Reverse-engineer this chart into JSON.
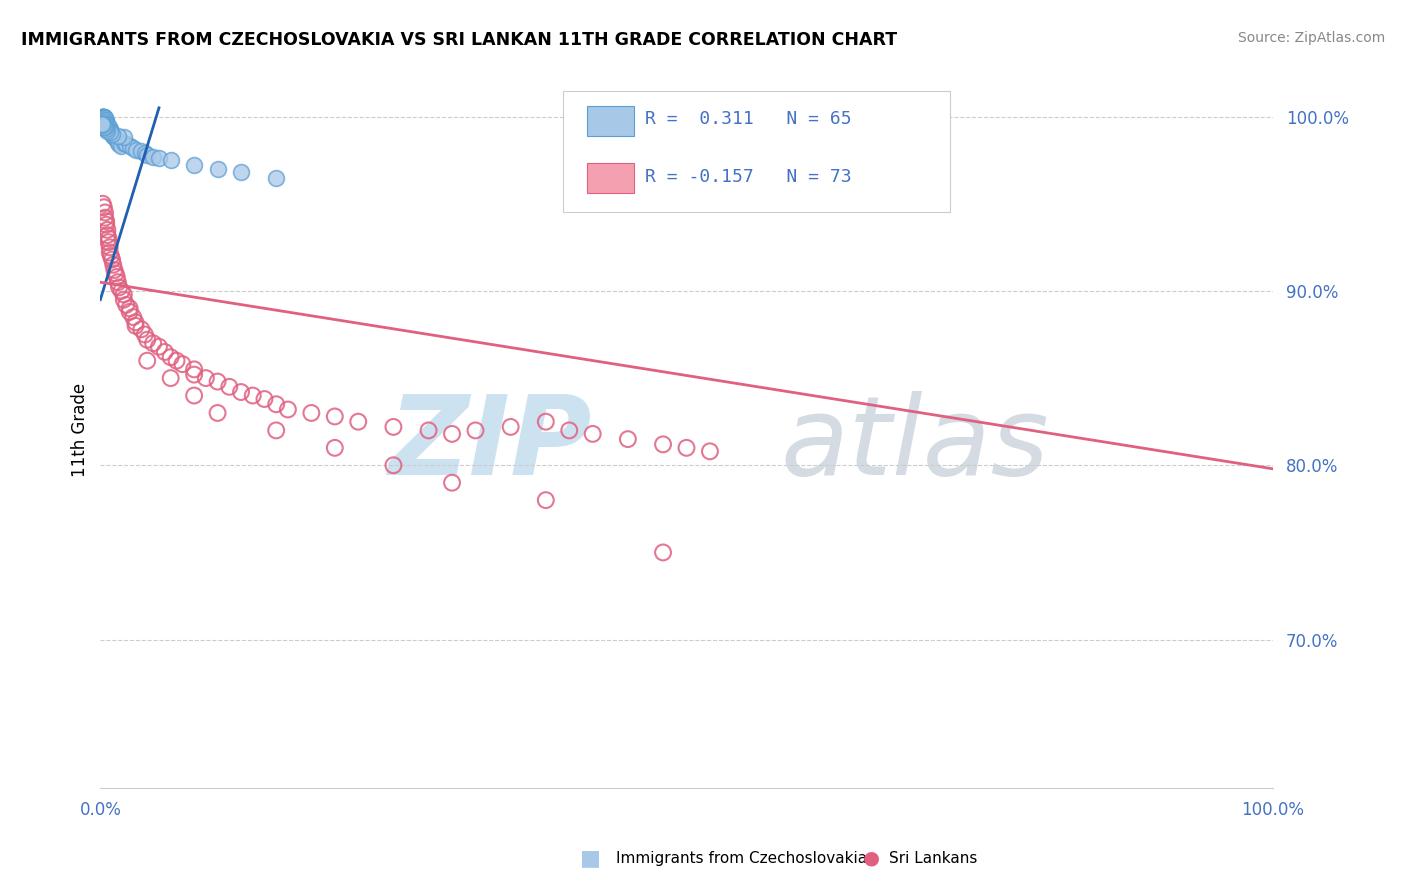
{
  "title": "IMMIGRANTS FROM CZECHOSLOVAKIA VS SRI LANKAN 11TH GRADE CORRELATION CHART",
  "source": "Source: ZipAtlas.com",
  "ylabel": "11th Grade",
  "y_tick_values": [
    0.7,
    0.8,
    0.9,
    1.0
  ],
  "legend_r1": "R =  0.311",
  "legend_n1": "N = 65",
  "legend_r2": "R = -0.157",
  "legend_n2": "N = 73",
  "blue_color": "#a8c8e8",
  "blue_edge_color": "#5a9fd4",
  "pink_color": "#f4a0b0",
  "pink_edge_color": "#e06080",
  "blue_line_color": "#2060b0",
  "pink_line_color": "#e06080",
  "watermark_zip_color": "#c8dff0",
  "watermark_atlas_color": "#d0d8e0",
  "xlim": [
    0.0,
    1.0
  ],
  "ylim": [
    0.615,
    1.025
  ],
  "blue_line_x0": 0.0,
  "blue_line_y0": 0.895,
  "blue_line_x1": 0.05,
  "blue_line_y1": 1.005,
  "pink_line_x0": 0.0,
  "pink_line_y0": 0.905,
  "pink_line_x1": 1.0,
  "pink_line_y1": 0.798,
  "blue_x": [
    0.001,
    0.001,
    0.001,
    0.002,
    0.002,
    0.002,
    0.002,
    0.002,
    0.003,
    0.003,
    0.003,
    0.003,
    0.003,
    0.003,
    0.003,
    0.004,
    0.004,
    0.004,
    0.004,
    0.004,
    0.004,
    0.005,
    0.005,
    0.005,
    0.005,
    0.006,
    0.006,
    0.006,
    0.007,
    0.007,
    0.008,
    0.008,
    0.009,
    0.01,
    0.011,
    0.012,
    0.013,
    0.015,
    0.016,
    0.018,
    0.02,
    0.022,
    0.025,
    0.028,
    0.03,
    0.035,
    0.038,
    0.04,
    0.045,
    0.05,
    0.06,
    0.08,
    0.1,
    0.12,
    0.15,
    0.02,
    0.015,
    0.01,
    0.008,
    0.006,
    0.005,
    0.004,
    0.003,
    0.002,
    0.001
  ],
  "blue_y": [
    1.0,
    1.0,
    1.0,
    1.0,
    1.0,
    1.0,
    1.0,
    0.999,
    1.0,
    1.0,
    1.0,
    0.999,
    0.998,
    0.997,
    0.996,
    0.999,
    0.998,
    0.997,
    0.996,
    0.995,
    0.994,
    0.998,
    0.997,
    0.996,
    0.995,
    0.996,
    0.995,
    0.994,
    0.994,
    0.993,
    0.993,
    0.992,
    0.991,
    0.99,
    0.989,
    0.988,
    0.987,
    0.985,
    0.984,
    0.983,
    0.985,
    0.984,
    0.983,
    0.982,
    0.981,
    0.98,
    0.979,
    0.978,
    0.977,
    0.976,
    0.975,
    0.972,
    0.97,
    0.968,
    0.965,
    0.988,
    0.989,
    0.99,
    0.991,
    0.992,
    0.993,
    0.994,
    0.994,
    0.995,
    0.996
  ],
  "pink_x": [
    0.002,
    0.003,
    0.004,
    0.004,
    0.005,
    0.005,
    0.006,
    0.006,
    0.007,
    0.007,
    0.008,
    0.008,
    0.009,
    0.01,
    0.011,
    0.012,
    0.013,
    0.014,
    0.015,
    0.016,
    0.018,
    0.02,
    0.02,
    0.022,
    0.025,
    0.025,
    0.028,
    0.03,
    0.03,
    0.035,
    0.038,
    0.04,
    0.045,
    0.05,
    0.055,
    0.06,
    0.065,
    0.07,
    0.08,
    0.08,
    0.09,
    0.1,
    0.11,
    0.12,
    0.13,
    0.14,
    0.15,
    0.16,
    0.18,
    0.2,
    0.22,
    0.25,
    0.28,
    0.3,
    0.32,
    0.35,
    0.38,
    0.4,
    0.42,
    0.45,
    0.48,
    0.5,
    0.52,
    0.48,
    0.38,
    0.3,
    0.25,
    0.2,
    0.15,
    0.1,
    0.08,
    0.06,
    0.04
  ],
  "pink_y": [
    0.95,
    0.948,
    0.945,
    0.942,
    0.94,
    0.938,
    0.935,
    0.932,
    0.93,
    0.928,
    0.925,
    0.922,
    0.92,
    0.918,
    0.915,
    0.912,
    0.91,
    0.908,
    0.905,
    0.902,
    0.9,
    0.898,
    0.895,
    0.892,
    0.89,
    0.888,
    0.885,
    0.882,
    0.88,
    0.878,
    0.875,
    0.872,
    0.87,
    0.868,
    0.865,
    0.862,
    0.86,
    0.858,
    0.855,
    0.852,
    0.85,
    0.848,
    0.845,
    0.842,
    0.84,
    0.838,
    0.835,
    0.832,
    0.83,
    0.828,
    0.825,
    0.822,
    0.82,
    0.818,
    0.82,
    0.822,
    0.825,
    0.82,
    0.818,
    0.815,
    0.812,
    0.81,
    0.808,
    0.75,
    0.78,
    0.79,
    0.8,
    0.81,
    0.82,
    0.83,
    0.84,
    0.85,
    0.86
  ]
}
